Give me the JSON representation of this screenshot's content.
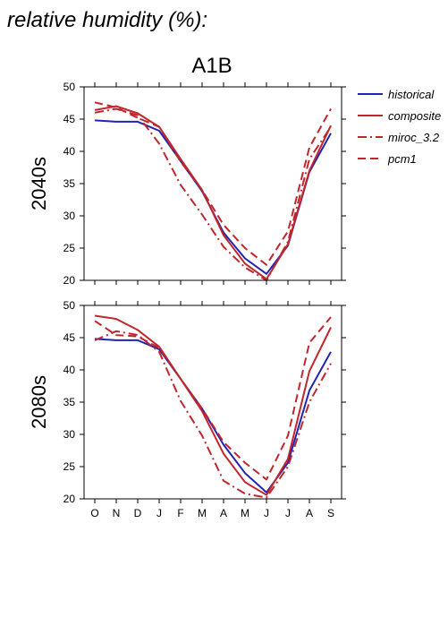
{
  "page_title": "relative humidity (%):",
  "chart_title": "A1B",
  "legend": [
    {
      "label": "historical",
      "color": "#1f24b4",
      "dash": "solid"
    },
    {
      "label": "composite",
      "color": "#c0262c",
      "dash": "solid"
    },
    {
      "label": "miroc_3.2",
      "color": "#c0262c",
      "dash": "dashdot"
    },
    {
      "label": "pcm1",
      "color": "#c0262c",
      "dash": "dashed"
    }
  ],
  "chart_data": [
    {
      "type": "line",
      "panel_label": "2040s",
      "categories": [
        "O",
        "N",
        "D",
        "J",
        "F",
        "M",
        "A",
        "M",
        "J",
        "J",
        "A",
        "S"
      ],
      "ylim": [
        20,
        50
      ],
      "yticks": [
        20,
        25,
        30,
        35,
        40,
        45,
        50
      ],
      "series": [
        {
          "name": "historical",
          "values": [
            44.8,
            44.6,
            44.6,
            43.2,
            38.5,
            33.8,
            27.4,
            23.4,
            21.0,
            25.4,
            36.8,
            42.8
          ]
        },
        {
          "name": "composite",
          "values": [
            46.4,
            47.0,
            45.9,
            43.8,
            38.8,
            34.0,
            27.0,
            22.6,
            20.2,
            25.6,
            37.0,
            44.0
          ]
        },
        {
          "name": "miroc_3.2",
          "values": [
            46.0,
            46.6,
            45.6,
            41.2,
            34.8,
            30.2,
            25.2,
            22.0,
            20.0,
            26.0,
            38.8,
            43.8
          ]
        },
        {
          "name": "pcm1",
          "values": [
            47.6,
            46.8,
            45.2,
            43.8,
            38.4,
            34.0,
            28.6,
            25.0,
            22.4,
            27.6,
            40.6,
            46.6
          ]
        }
      ]
    },
    {
      "type": "line",
      "panel_label": "2080s",
      "categories": [
        "O",
        "N",
        "D",
        "J",
        "F",
        "M",
        "A",
        "M",
        "J",
        "J",
        "A",
        "S"
      ],
      "ylim": [
        20,
        50
      ],
      "yticks": [
        20,
        25,
        30,
        35,
        40,
        45,
        50
      ],
      "series": [
        {
          "name": "historical",
          "values": [
            44.8,
            44.6,
            44.6,
            43.2,
            38.6,
            34.0,
            28.4,
            24.0,
            21.0,
            25.6,
            36.8,
            42.8
          ]
        },
        {
          "name": "composite",
          "values": [
            48.4,
            47.9,
            46.2,
            43.6,
            38.6,
            33.6,
            27.0,
            22.6,
            20.6,
            26.2,
            39.8,
            46.6
          ]
        },
        {
          "name": "miroc_3.2",
          "values": [
            44.6,
            46.0,
            45.4,
            42.8,
            35.2,
            29.8,
            22.8,
            20.8,
            20.2,
            25.0,
            35.0,
            41.0
          ]
        },
        {
          "name": "pcm1",
          "values": [
            47.6,
            45.4,
            45.2,
            43.4,
            38.6,
            34.0,
            28.8,
            25.6,
            23.0,
            29.8,
            44.2,
            48.2
          ]
        }
      ]
    }
  ]
}
